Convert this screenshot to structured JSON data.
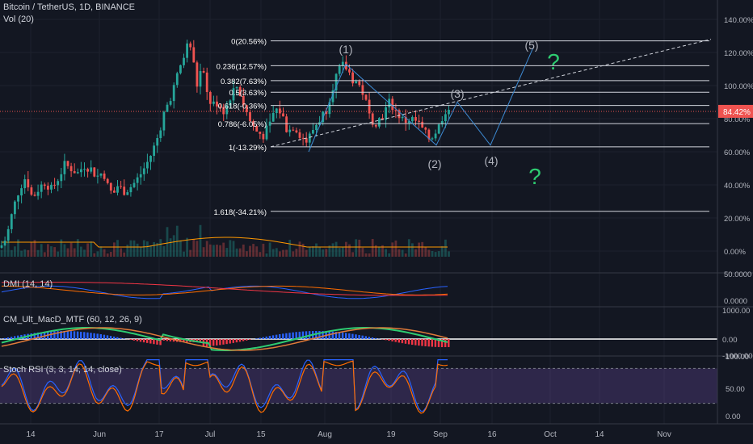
{
  "header": {
    "symbol_line": "Bitcoin / TetherUS, 1D, BINANCE",
    "volume_label": "Vol (20)"
  },
  "price_badge": {
    "value": "84.42%",
    "color": "#ef5350"
  },
  "indicators": {
    "dmi": {
      "label": "DMI (14, 14)",
      "ticks": [
        "50.0000",
        "0.0000"
      ]
    },
    "macd": {
      "label": "CM_Ult_MacD_MTF (60, 12, 26, 9)",
      "ticks": [
        "1000.00",
        "0.00",
        "-1000.00"
      ]
    },
    "stoch": {
      "label": "Stoch RSI (3, 3, 14, 14, close)",
      "ticks": [
        "100.00",
        "50.00",
        "0.00"
      ]
    }
  },
  "chart_data": {
    "type": "candlestick",
    "y_axis_ticks": [
      "140.00%",
      "120.00%",
      "100.00%",
      "80.00%",
      "60.00%",
      "40.00%",
      "20.00%",
      "0.00%"
    ],
    "y_axis_values": [
      140,
      120,
      100,
      80,
      60,
      40,
      20,
      0
    ],
    "x_axis_ticks": [
      "14",
      "Jun",
      "17",
      "Jul",
      "15",
      "Aug",
      "19",
      "Sep",
      "16",
      "Oct",
      "14",
      "Nov"
    ],
    "current_value": 84.42,
    "fib_levels": [
      {
        "label": "0(20.56%)",
        "value": 127
      },
      {
        "label": "0.236(12.57%)",
        "value": 112
      },
      {
        "label": "0.382(7.63%)",
        "value": 103
      },
      {
        "label": "0.5(3.63%)",
        "value": 96
      },
      {
        "label": "0.618(-0.36%)",
        "value": 88
      },
      {
        "label": "0.786(-6.05%)",
        "value": 77
      },
      {
        "label": "1(-13.29%)",
        "value": 63
      },
      {
        "label": "1.618(-34.21%)",
        "value": 24
      }
    ],
    "wave_labels": [
      "(1)",
      "(2)",
      "(3)",
      "(4)",
      "(5)"
    ],
    "annotations": [
      "?",
      "?"
    ],
    "colors": {
      "up": "#26a69a",
      "down": "#ef5350",
      "wave": "#3d8bd4",
      "question": "#2ecc71"
    }
  }
}
